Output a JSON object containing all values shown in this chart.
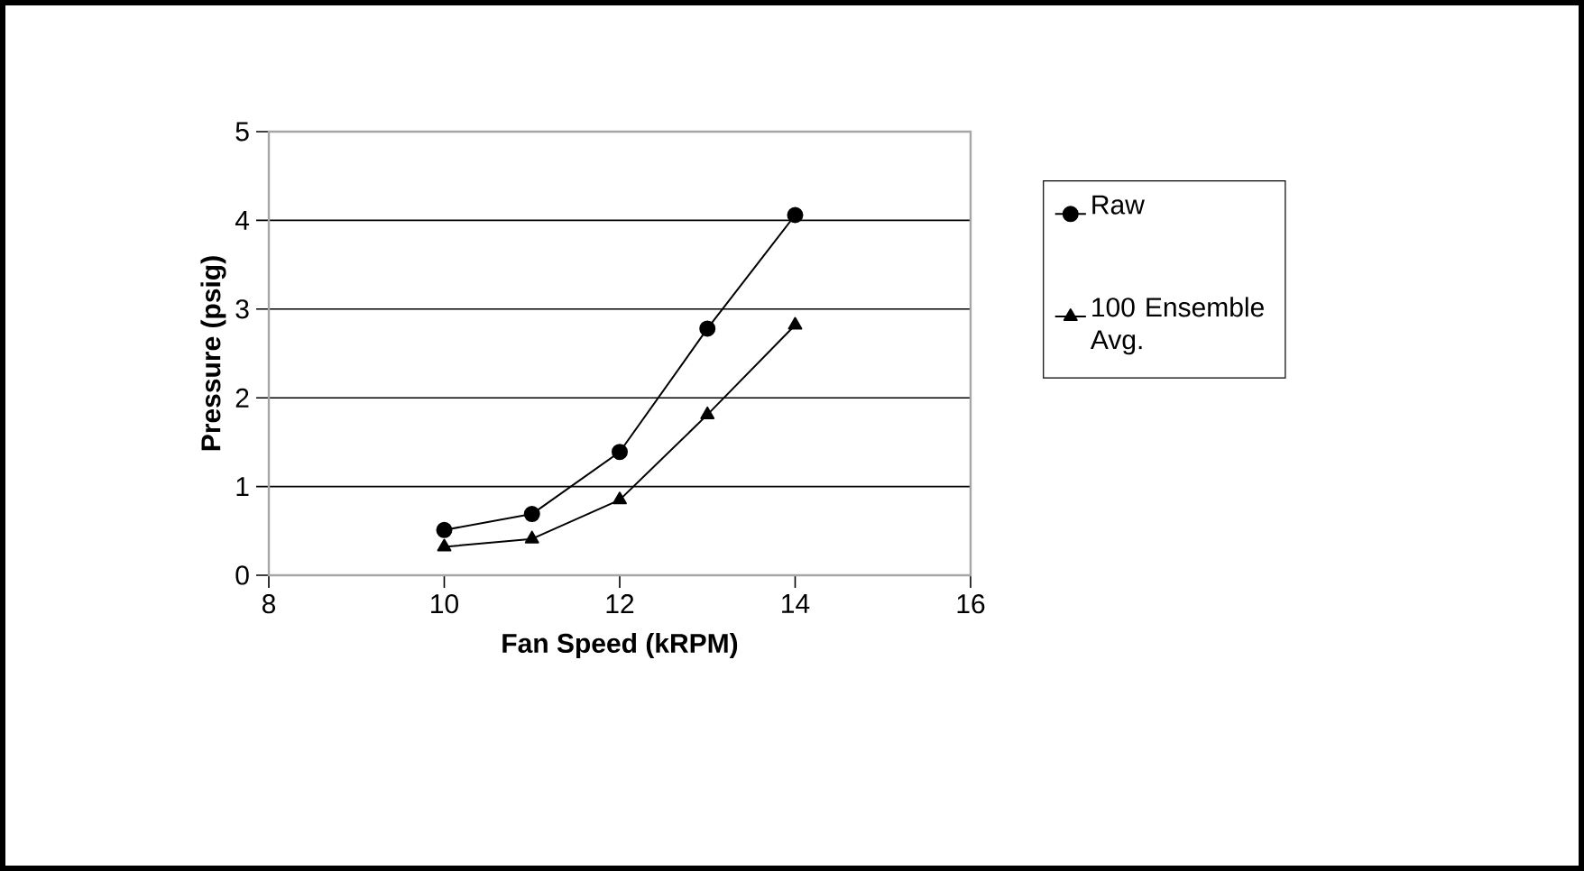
{
  "chart_data": {
    "type": "line",
    "xlabel": "Fan Speed (kRPM)",
    "ylabel": "Pressure (psig)",
    "xlim": [
      8,
      16
    ],
    "xticks": [
      8,
      10,
      12,
      14,
      16
    ],
    "ylim": [
      0,
      5
    ],
    "yticks": [
      0,
      1,
      2,
      3,
      4,
      5
    ],
    "grid": "y",
    "legend": "right",
    "line_style": "solid",
    "x": [
      10,
      11,
      12,
      13,
      14
    ],
    "series": [
      {
        "name": "Raw",
        "color": "#000000",
        "marker": "circle",
        "values": [
          0.51,
          0.69,
          1.39,
          2.78,
          4.06
        ]
      },
      {
        "name": "100 Ensemble Avg.",
        "color": "#000000",
        "marker": "triangle",
        "values": [
          0.32,
          0.41,
          0.85,
          1.81,
          2.82
        ]
      }
    ]
  }
}
